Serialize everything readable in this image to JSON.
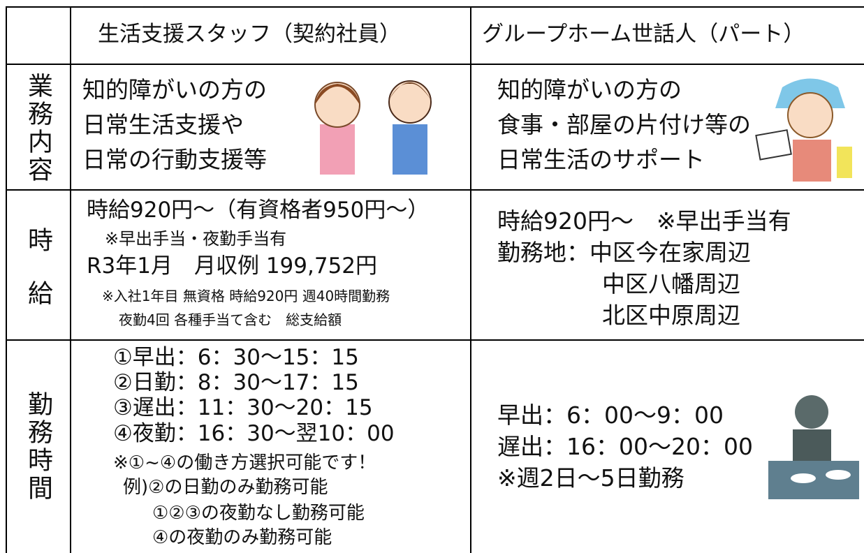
{
  "table": {
    "header": [
      "生活支援スタッフ（契約社員）",
      "グループホーム世話人（パート）"
    ],
    "rows": [
      {
        "label": "業務内容",
        "cells": [
          [
            "知的障がいの方の",
            "日常生活支援や",
            "日常の行動支援等"
          ],
          [
            "知的障がいの方の",
            "食事・部屋の片付け等の",
            "日常生活のサポート"
          ]
        ]
      },
      {
        "label": "時給",
        "cells": [
          [
            "時給920円～（有資格者950円～）",
            "※早出手当・夜勤手当有",
            "R3年1月　月収例 199,752円",
            "※入社1年目 無資格 時給920円 週40時間勤務",
            "夜勤4回 各種手当て含む　総支給額"
          ],
          [
            "時給920円～　※早出手当有",
            "勤務地：中区今在家周辺",
            "中区八幡周辺",
            "北区中原周辺"
          ]
        ]
      },
      {
        "label": "勤務時間",
        "cells": [
          [
            "①早出：6：30～15：15",
            "②日勤：8：30～17：15",
            "③遅出：11：30～20：15",
            "④夜勤：16：30～翌10：00",
            "※①~④の働き方選択可能です！",
            "例)②の日勤のみ勤務可能",
            "①②③の夜勤なし勤務可能",
            "④の夜勤のみ勤務可能"
          ],
          [
            "早出：6：00～9：00",
            "遅出：16：00～20：00",
            "※週2日～5日勤務"
          ]
        ]
      }
    ]
  }
}
